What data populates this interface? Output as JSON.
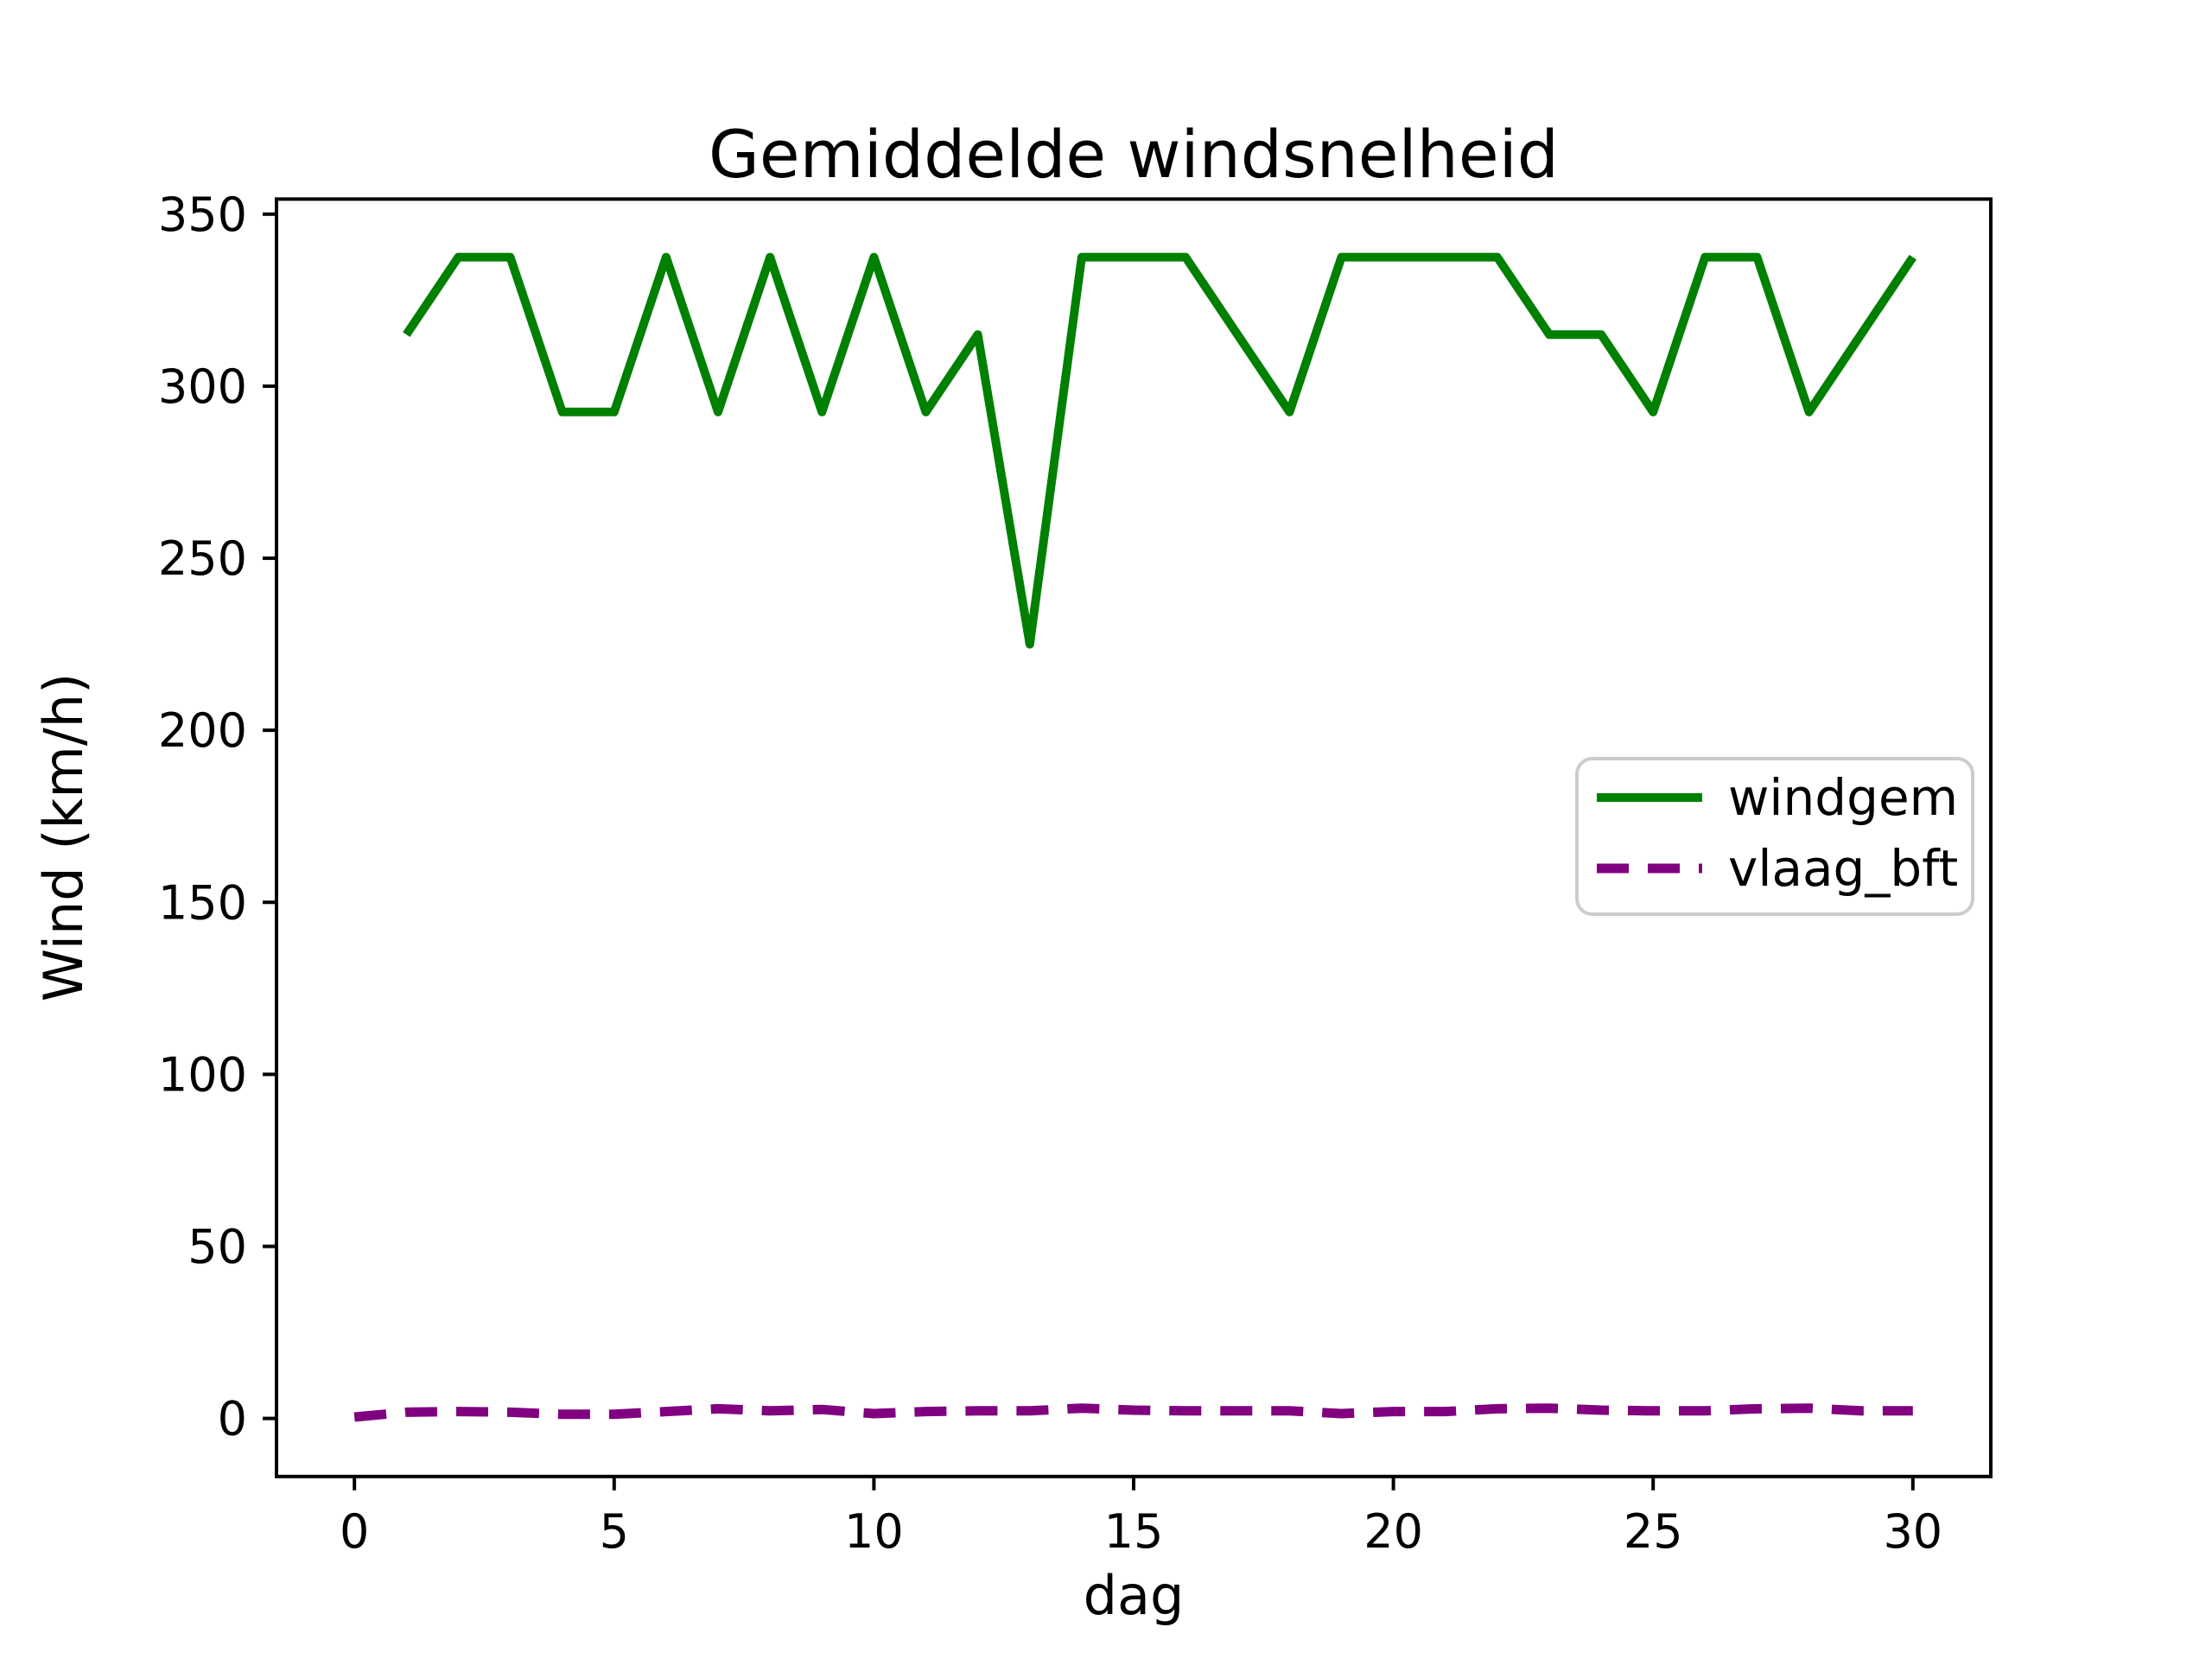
{
  "figure": {
    "background": "#ffffff",
    "text_color": "#000000",
    "spine_color": "#000000"
  },
  "chart_data": {
    "type": "line",
    "title": "Gemiddelde windsnelheid",
    "xlabel": "dag",
    "ylabel": "Wind (km/h)",
    "xlim": [
      -1.5,
      31.5
    ],
    "ylim": [
      -16.875,
      354.375
    ],
    "x_ticks": [
      0,
      5,
      10,
      15,
      20,
      25,
      30
    ],
    "y_ticks": [
      0,
      50,
      100,
      150,
      200,
      250,
      300,
      350
    ],
    "grid": false,
    "legend_position": "center right",
    "legend_border_color": "#cccccc",
    "series": [
      {
        "name": "windgem",
        "color": "#008000",
        "style": "solid",
        "x": [
          1,
          2,
          3,
          4,
          5,
          6,
          7,
          8,
          9,
          10,
          11,
          12,
          13,
          14,
          15,
          16,
          17,
          18,
          19,
          20,
          21,
          22,
          23,
          24,
          25,
          26,
          27,
          28,
          29,
          30
        ],
        "values": [
          315,
          337.5,
          337.5,
          292.5,
          292.5,
          337.5,
          292.5,
          337.5,
          292.5,
          337.5,
          292.5,
          315,
          225,
          337.5,
          337.5,
          337.5,
          315,
          292.5,
          337.5,
          337.5,
          337.5,
          337.5,
          315,
          315,
          292.5,
          337.5,
          337.5,
          292.5,
          315,
          337.5
        ]
      },
      {
        "name": "vlaag_bft",
        "color": "#800080",
        "style": "dashed",
        "x": [
          0,
          1,
          2,
          3,
          4,
          5,
          6,
          7,
          8,
          9,
          10,
          11,
          12,
          13,
          14,
          15,
          16,
          17,
          18,
          19,
          20,
          21,
          22,
          23,
          24,
          25,
          26,
          27,
          28,
          29,
          30
        ],
        "values": [
          0.4,
          1.8,
          2,
          1.8,
          1.2,
          1.2,
          2,
          2.8,
          2.2,
          2.6,
          1.4,
          2,
          2.2,
          2.2,
          3,
          2.4,
          2.2,
          2.2,
          2.2,
          1.4,
          2,
          2,
          2.8,
          3,
          2.4,
          2.2,
          2.2,
          2.8,
          3,
          2.2,
          2.2
        ]
      }
    ]
  }
}
